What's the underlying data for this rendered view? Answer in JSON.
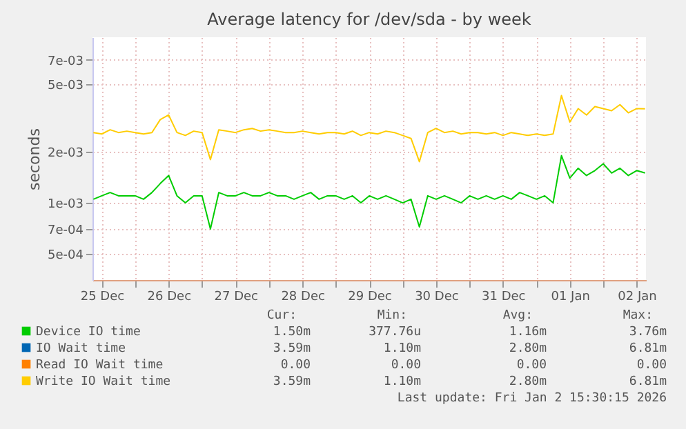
{
  "chart_data": {
    "type": "line",
    "title": "Average latency for /dev/sda - by week",
    "ylabel": "seconds",
    "log": "y",
    "grid": true,
    "legend": "bottom",
    "ylim": [
      0.00035,
      0.0095
    ],
    "yticks": [
      {
        "value": 0.0005,
        "label": "5e-04"
      },
      {
        "value": 0.0007,
        "label": "7e-04"
      },
      {
        "value": 0.001,
        "label": "1e-03"
      },
      {
        "value": 0.002,
        "label": "2e-03"
      },
      {
        "value": 0.005,
        "label": "5e-03"
      },
      {
        "value": 0.007,
        "label": "7e-03"
      }
    ],
    "xlim": [
      "2025-12-25T08:40",
      "2026-01-02T15:20"
    ],
    "xticks": [
      {
        "value": "2025-12-25T12:00",
        "label": "25 Dec"
      },
      {
        "value": "2025-12-26T00:00",
        "label": null
      },
      {
        "value": "2025-12-26T12:00",
        "label": "26 Dec"
      },
      {
        "value": "2025-12-27T00:00",
        "label": null
      },
      {
        "value": "2025-12-27T12:00",
        "label": "27 Dec"
      },
      {
        "value": "2025-12-28T00:00",
        "label": null
      },
      {
        "value": "2025-12-28T12:00",
        "label": "28 Dec"
      },
      {
        "value": "2025-12-29T00:00",
        "label": null
      },
      {
        "value": "2025-12-29T12:00",
        "label": "29 Dec"
      },
      {
        "value": "2025-12-30T00:00",
        "label": null
      },
      {
        "value": "2025-12-30T12:00",
        "label": "30 Dec"
      },
      {
        "value": "2025-12-31T00:00",
        "label": null
      },
      {
        "value": "2025-12-31T12:00",
        "label": "31 Dec"
      },
      {
        "value": "2026-01-01T00:00",
        "label": null
      },
      {
        "value": "2026-01-01T12:00",
        "label": "01 Jan"
      },
      {
        "value": "2026-01-02T00:00",
        "label": null
      },
      {
        "value": "2026-01-02T12:00",
        "label": "02 Jan"
      }
    ],
    "x": [
      "2025-12-25T09:00",
      "2025-12-25T12:00",
      "2025-12-25T15:00",
      "2025-12-25T18:00",
      "2025-12-25T21:00",
      "2025-12-26T00:00",
      "2025-12-26T03:00",
      "2025-12-26T06:00",
      "2025-12-26T09:00",
      "2025-12-26T12:00",
      "2025-12-26T15:00",
      "2025-12-26T18:00",
      "2025-12-26T21:00",
      "2025-12-27T00:00",
      "2025-12-27T03:00",
      "2025-12-27T06:00",
      "2025-12-27T09:00",
      "2025-12-27T12:00",
      "2025-12-27T15:00",
      "2025-12-27T18:00",
      "2025-12-27T21:00",
      "2025-12-28T00:00",
      "2025-12-28T03:00",
      "2025-12-28T06:00",
      "2025-12-28T09:00",
      "2025-12-28T12:00",
      "2025-12-28T15:00",
      "2025-12-28T18:00",
      "2025-12-28T21:00",
      "2025-12-29T00:00",
      "2025-12-29T03:00",
      "2025-12-29T06:00",
      "2025-12-29T09:00",
      "2025-12-29T12:00",
      "2025-12-29T15:00",
      "2025-12-29T18:00",
      "2025-12-29T21:00",
      "2025-12-30T00:00",
      "2025-12-30T03:00",
      "2025-12-30T06:00",
      "2025-12-30T09:00",
      "2025-12-30T12:00",
      "2025-12-30T15:00",
      "2025-12-30T18:00",
      "2025-12-30T21:00",
      "2025-12-31T00:00",
      "2025-12-31T03:00",
      "2025-12-31T06:00",
      "2025-12-31T09:00",
      "2025-12-31T12:00",
      "2025-12-31T15:00",
      "2025-12-31T18:00",
      "2025-12-31T21:00",
      "2026-01-01T00:00",
      "2026-01-01T03:00",
      "2026-01-01T06:00",
      "2026-01-01T09:00",
      "2026-01-01T12:00",
      "2026-01-01T15:00",
      "2026-01-01T18:00",
      "2026-01-01T21:00",
      "2026-01-02T00:00",
      "2026-01-02T03:00",
      "2026-01-02T06:00",
      "2026-01-02T09:00",
      "2026-01-02T12:00",
      "2026-01-02T15:00"
    ],
    "series": [
      {
        "name": "Device IO time",
        "color": "#00cc00",
        "values": [
          0.00105,
          0.0011,
          0.00115,
          0.0011,
          0.0011,
          0.0011,
          0.00105,
          0.00115,
          0.0013,
          0.00145,
          0.0011,
          0.001,
          0.0011,
          0.0011,
          0.0007,
          0.00115,
          0.0011,
          0.0011,
          0.00115,
          0.0011,
          0.0011,
          0.00115,
          0.0011,
          0.0011,
          0.00105,
          0.0011,
          0.00115,
          0.00105,
          0.0011,
          0.0011,
          0.00105,
          0.0011,
          0.001,
          0.0011,
          0.00105,
          0.0011,
          0.00105,
          0.001,
          0.00105,
          0.00072,
          0.0011,
          0.00105,
          0.0011,
          0.00105,
          0.001,
          0.0011,
          0.00105,
          0.0011,
          0.00105,
          0.0011,
          0.00105,
          0.00115,
          0.0011,
          0.00105,
          0.0011,
          0.001,
          0.0019,
          0.0014,
          0.0016,
          0.00145,
          0.00155,
          0.0017,
          0.0015,
          0.0016,
          0.00145,
          0.00155,
          0.0015
        ]
      },
      {
        "name": "IO Wait time",
        "color": "#0066b3",
        "values": [
          null,
          null,
          null,
          null,
          null,
          null,
          null,
          null,
          null,
          null,
          null,
          null,
          null,
          null,
          null,
          null,
          null,
          null,
          null,
          null,
          null,
          null,
          null,
          null,
          null,
          null,
          null,
          null,
          null,
          null,
          null,
          null,
          null,
          null,
          null,
          null,
          null,
          null,
          null,
          null,
          null,
          null,
          null,
          null,
          null,
          null,
          null,
          null,
          null,
          null,
          null,
          null,
          null,
          null,
          null,
          null,
          null,
          null,
          null,
          null,
          null,
          null,
          null,
          null,
          null,
          null,
          null
        ]
      },
      {
        "name": "Read IO Wait time",
        "color": "#ff8000",
        "values": [
          null,
          null,
          null,
          null,
          null,
          null,
          null,
          null,
          null,
          null,
          null,
          null,
          null,
          null,
          null,
          null,
          null,
          null,
          null,
          null,
          null,
          null,
          null,
          null,
          null,
          null,
          null,
          null,
          null,
          null,
          null,
          null,
          null,
          null,
          null,
          null,
          null,
          null,
          null,
          null,
          null,
          null,
          null,
          null,
          null,
          null,
          null,
          null,
          null,
          null,
          null,
          null,
          null,
          null,
          null,
          null,
          null,
          null,
          null,
          null,
          null,
          null,
          null,
          null,
          null,
          null,
          null
        ]
      },
      {
        "name": "Write IO Wait time",
        "color": "#ffcc00",
        "values": [
          0.0026,
          0.00255,
          0.0027,
          0.0026,
          0.00265,
          0.0026,
          0.00255,
          0.0026,
          0.0031,
          0.0033,
          0.0026,
          0.0025,
          0.00265,
          0.0026,
          0.0018,
          0.0027,
          0.00265,
          0.0026,
          0.0027,
          0.00275,
          0.00265,
          0.0027,
          0.00265,
          0.0026,
          0.0026,
          0.00265,
          0.0026,
          0.00255,
          0.0026,
          0.0026,
          0.00255,
          0.00265,
          0.0025,
          0.0026,
          0.00255,
          0.00265,
          0.0026,
          0.0025,
          0.0024,
          0.00175,
          0.0026,
          0.00275,
          0.0026,
          0.00265,
          0.00255,
          0.0026,
          0.0026,
          0.00255,
          0.0026,
          0.0025,
          0.0026,
          0.00255,
          0.0025,
          0.00255,
          0.0025,
          0.00255,
          0.0043,
          0.003,
          0.0036,
          0.0033,
          0.0037,
          0.0036,
          0.0035,
          0.0038,
          0.0034,
          0.0036,
          0.00359
        ]
      }
    ],
    "annotations": [
      "Cur:",
      "Min:",
      "Avg:",
      "Max:",
      "1.50m",
      "377.76u",
      "1.16m",
      "3.76m",
      "3.59m",
      "1.10m",
      "2.80m",
      "6.81m",
      "0.00",
      "0.00",
      "0.00",
      "0.00",
      "3.59m",
      "1.10m",
      "2.80m",
      "6.81m",
      "Last update: Fri Jan  2 15:30:15 2026"
    ]
  }
}
